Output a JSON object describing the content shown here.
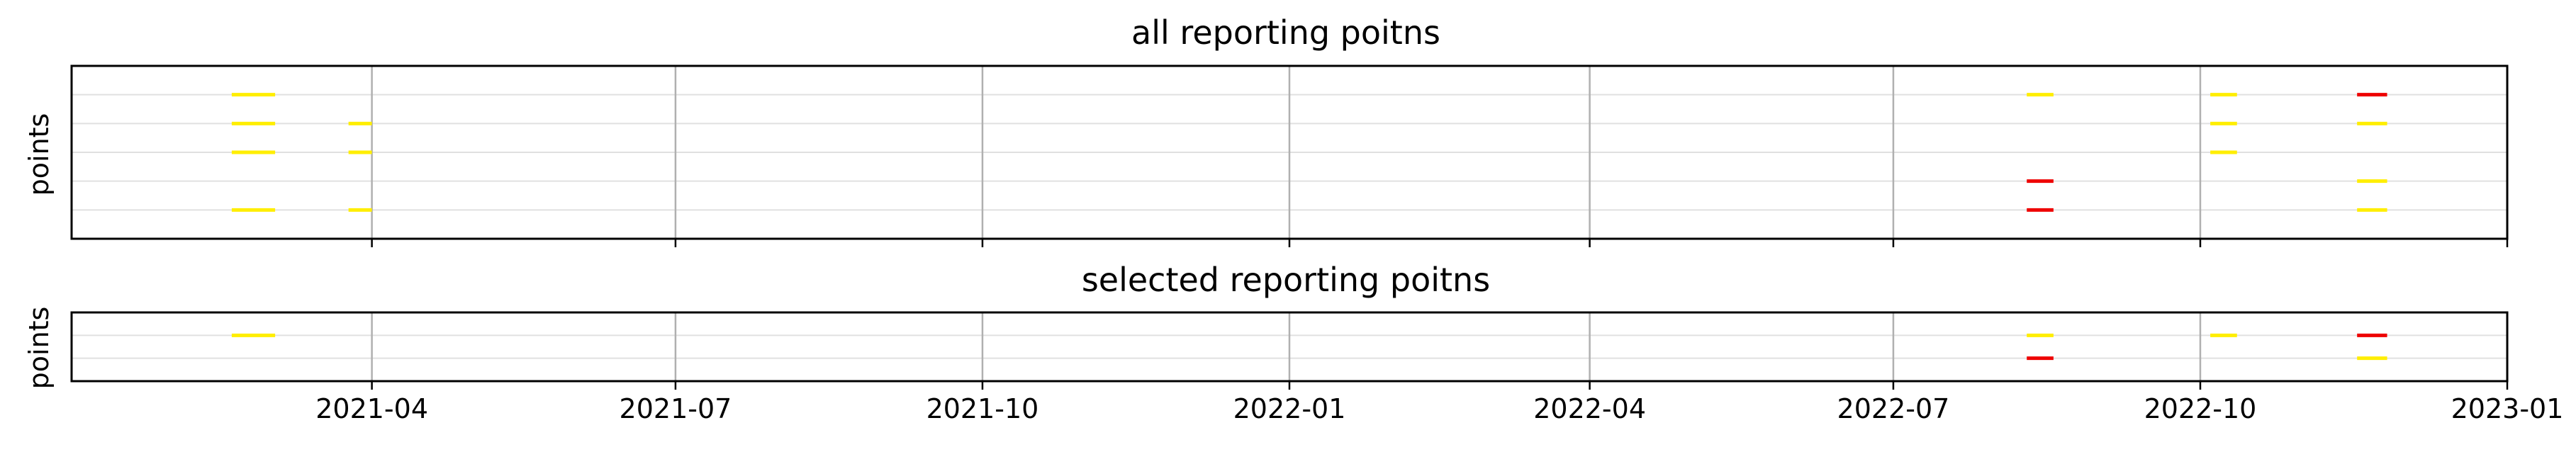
{
  "colors": {
    "background": "#ffffff",
    "grid_major": "#b0b0b0",
    "grid_minor": "#e0e0e0",
    "spine": "#000000",
    "yellow": "#ffee00",
    "red": "#ee0000"
  },
  "chart_data": [
    {
      "type": "event-timeline",
      "title": "all reporting poitns",
      "xlabel": "",
      "ylabel": "points",
      "xlim": [
        "2021-01-01",
        "2023-01-01"
      ],
      "ylim": [
        0,
        6
      ],
      "lanes": [
        1,
        2,
        3,
        4,
        5
      ],
      "show_x_tick_labels": false,
      "events": [
        {
          "start": "2021-02-18",
          "end": "2021-03-03",
          "lane": 5,
          "color": "yellow"
        },
        {
          "start": "2021-02-18",
          "end": "2021-03-03",
          "lane": 4,
          "color": "yellow"
        },
        {
          "start": "2021-02-18",
          "end": "2021-03-03",
          "lane": 3,
          "color": "yellow"
        },
        {
          "start": "2021-02-18",
          "end": "2021-03-03",
          "lane": 1,
          "color": "yellow"
        },
        {
          "start": "2021-03-25",
          "end": "2021-04-01",
          "lane": 4,
          "color": "yellow"
        },
        {
          "start": "2021-03-25",
          "end": "2021-04-01",
          "lane": 3,
          "color": "yellow"
        },
        {
          "start": "2021-03-25",
          "end": "2021-04-01",
          "lane": 1,
          "color": "yellow"
        },
        {
          "start": "2022-08-10",
          "end": "2022-08-18",
          "lane": 5,
          "color": "yellow"
        },
        {
          "start": "2022-08-10",
          "end": "2022-08-18",
          "lane": 2,
          "color": "red"
        },
        {
          "start": "2022-08-10",
          "end": "2022-08-18",
          "lane": 1,
          "color": "red"
        },
        {
          "start": "2022-10-04",
          "end": "2022-10-12",
          "lane": 5,
          "color": "yellow"
        },
        {
          "start": "2022-10-04",
          "end": "2022-10-12",
          "lane": 4,
          "color": "yellow"
        },
        {
          "start": "2022-10-04",
          "end": "2022-10-12",
          "lane": 3,
          "color": "yellow"
        },
        {
          "start": "2022-11-17",
          "end": "2022-11-26",
          "lane": 5,
          "color": "red"
        },
        {
          "start": "2022-11-17",
          "end": "2022-11-26",
          "lane": 4,
          "color": "yellow"
        },
        {
          "start": "2022-11-17",
          "end": "2022-11-26",
          "lane": 2,
          "color": "yellow"
        },
        {
          "start": "2022-11-17",
          "end": "2022-11-26",
          "lane": 1,
          "color": "yellow"
        }
      ]
    },
    {
      "type": "event-timeline",
      "title": "selected reporting poitns",
      "xlabel": "",
      "ylabel": "points",
      "xlim": [
        "2021-01-01",
        "2023-01-01"
      ],
      "ylim": [
        0,
        3
      ],
      "lanes": [
        1,
        2
      ],
      "show_x_tick_labels": true,
      "x_ticks": [
        "2021-04",
        "2021-07",
        "2021-10",
        "2022-01",
        "2022-04",
        "2022-07",
        "2022-10",
        "2023-01"
      ],
      "events": [
        {
          "start": "2021-02-18",
          "end": "2021-03-03",
          "lane": 2,
          "color": "yellow"
        },
        {
          "start": "2022-08-10",
          "end": "2022-08-18",
          "lane": 2,
          "color": "yellow"
        },
        {
          "start": "2022-08-10",
          "end": "2022-08-18",
          "lane": 1,
          "color": "red"
        },
        {
          "start": "2022-10-04",
          "end": "2022-10-12",
          "lane": 2,
          "color": "yellow"
        },
        {
          "start": "2022-11-17",
          "end": "2022-11-26",
          "lane": 2,
          "color": "red"
        },
        {
          "start": "2022-11-17",
          "end": "2022-11-26",
          "lane": 1,
          "color": "yellow"
        }
      ]
    }
  ]
}
